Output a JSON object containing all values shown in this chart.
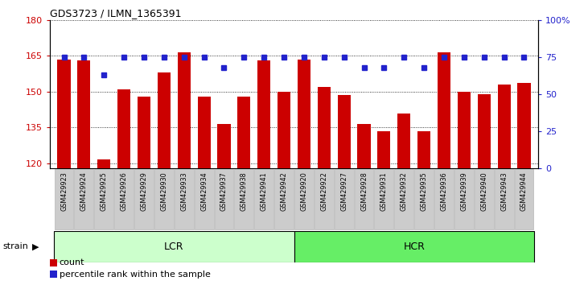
{
  "title": "GDS3723 / ILMN_1365391",
  "samples": [
    "GSM429923",
    "GSM429924",
    "GSM429925",
    "GSM429926",
    "GSM429929",
    "GSM429930",
    "GSM429933",
    "GSM429934",
    "GSM429937",
    "GSM429938",
    "GSM429941",
    "GSM429942",
    "GSM429920",
    "GSM429922",
    "GSM429927",
    "GSM429928",
    "GSM429931",
    "GSM429932",
    "GSM429935",
    "GSM429936",
    "GSM429939",
    "GSM429940",
    "GSM429943",
    "GSM429944"
  ],
  "counts": [
    163.5,
    163.0,
    121.5,
    151.0,
    148.0,
    158.0,
    166.5,
    148.0,
    136.5,
    148.0,
    163.0,
    150.0,
    163.5,
    152.0,
    148.5,
    136.5,
    133.5,
    141.0,
    133.5,
    166.5,
    150.0,
    149.0,
    153.0,
    153.5
  ],
  "percentile_ranks": [
    75,
    75,
    63,
    75,
    75,
    75,
    75,
    75,
    68,
    75,
    75,
    75,
    75,
    75,
    75,
    68,
    68,
    75,
    68,
    75,
    75,
    75,
    75,
    75
  ],
  "groups": [
    {
      "label": "LCR",
      "start": 0,
      "end": 12,
      "color": "#ccffcc"
    },
    {
      "label": "HCR",
      "start": 12,
      "end": 24,
      "color": "#66ee66"
    }
  ],
  "ylim_left": [
    118,
    180
  ],
  "ylim_right": [
    0,
    100
  ],
  "yticks_left": [
    120,
    135,
    150,
    165,
    180
  ],
  "yticks_right": [
    0,
    25,
    50,
    75,
    100
  ],
  "bar_color": "#cc0000",
  "dot_color": "#2222cc",
  "tick_box_color": "#cccccc",
  "tick_box_edge": "#aaaaaa",
  "strain_label": "strain",
  "legend_count": "count",
  "legend_percentile": "percentile rank within the sample"
}
